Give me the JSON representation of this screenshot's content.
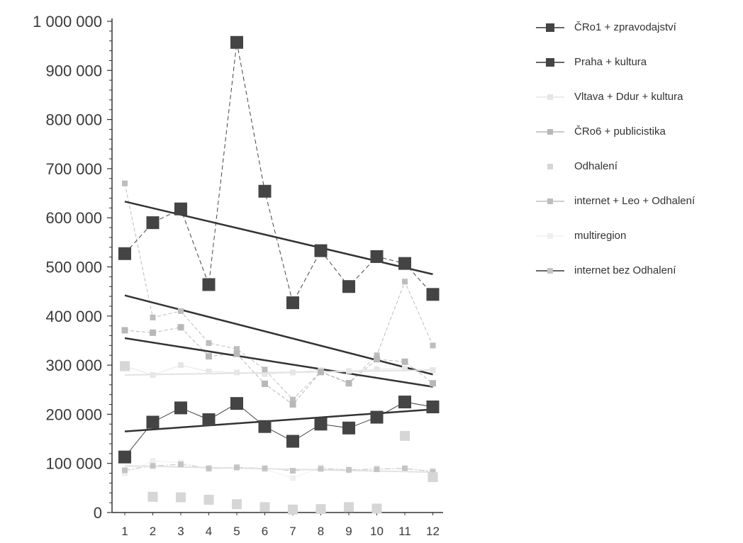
{
  "colors": {
    "background": "#ffffff",
    "axis": "#333333",
    "cro1": "#444444",
    "praha": "#444444",
    "vltava": "#e6e6e6",
    "cro6": "#b8b8b8",
    "odhaleni": "#d6d6d6",
    "internet_leo": "#bdbdbd",
    "multiregion": "#efefef",
    "internet_bez": "#c4c4c4",
    "trend": "#333333"
  },
  "chart_data": {
    "type": "line",
    "title": "",
    "xlabel": "",
    "ylabel": "",
    "categories": [
      "1",
      "2",
      "3",
      "4",
      "5",
      "6",
      "7",
      "8",
      "9",
      "10",
      "11",
      "12"
    ],
    "ylim": [
      0,
      1000000
    ],
    "y_ticks": [
      0,
      100000,
      200000,
      300000,
      400000,
      500000,
      600000,
      700000,
      800000,
      900000,
      1000000
    ],
    "y_tick_labels": [
      "0",
      "100 000",
      "200 000",
      "300 000",
      "400 000",
      "500 000",
      "600 000",
      "700 000",
      "800 000",
      "900 000",
      "1 000 000"
    ],
    "grid": false,
    "legend_position": "right",
    "series": [
      {
        "name": "ČRo1 + zpravodajství",
        "key": "cro1",
        "marker": "square-large",
        "line": "dashed",
        "values": [
          527000,
          590000,
          618000,
          464000,
          957000,
          654000,
          427000,
          533000,
          460000,
          521000,
          507000,
          444000
        ]
      },
      {
        "name": "Praha + kultura",
        "key": "praha",
        "marker": "square-large",
        "line": "solid-thin",
        "values": [
          113000,
          184000,
          213000,
          189000,
          222000,
          175000,
          145000,
          180000,
          172000,
          194000,
          225000,
          215000
        ]
      },
      {
        "name": "Vltava + Ddur + kultura",
        "key": "vltava",
        "marker": "square",
        "line": "solid-thin",
        "values": [
          298000,
          280000,
          300000,
          287000,
          285000,
          282000,
          285000,
          290000,
          288000,
          292000,
          293000,
          290000
        ]
      },
      {
        "name": "ČRo6 + publicistika",
        "key": "cro6",
        "marker": "square-small",
        "line": "dashed",
        "values": [
          371000,
          366000,
          377000,
          318000,
          323000,
          262000,
          220000,
          286000,
          263000,
          312000,
          307000,
          263000
        ]
      },
      {
        "name": "Odhalení",
        "key": "odhaleni",
        "marker": "square",
        "line": "none",
        "values": [
          298000,
          32000,
          31000,
          26000,
          17000,
          11000,
          6000,
          7000,
          11000,
          8000,
          156000,
          72000
        ]
      },
      {
        "name": "internet + Leo + Odhalení",
        "key": "internet_leo",
        "marker": "square-small",
        "line": "dashed",
        "values": [
          670000,
          397000,
          410000,
          345000,
          333000,
          291000,
          230000,
          287000,
          264000,
          320000,
          470000,
          340000
        ]
      },
      {
        "name": "multiregion",
        "key": "multiregion",
        "marker": "square",
        "line": "solid-thin",
        "values": [
          80000,
          105000,
          102000,
          88000,
          91000,
          88000,
          70000,
          92000,
          86000,
          90000,
          88000,
          85000
        ]
      },
      {
        "name": "internet bez Odhalení",
        "key": "internet_bez",
        "marker": "square-small",
        "line": "dash-dot",
        "values": [
          86000,
          95000,
          98000,
          90000,
          92000,
          90000,
          85000,
          89000,
          87000,
          88000,
          90000,
          83000
        ]
      }
    ],
    "trendlines": [
      {
        "of": "ČRo1 + zpravodajství",
        "start": 633000,
        "end": 485000
      },
      {
        "of": "internet + Leo + Odhalení",
        "start": 442000,
        "end": 281000
      },
      {
        "of": "ČRo6 + publicistika",
        "start": 355000,
        "end": 256000
      },
      {
        "of": "Praha + kultura",
        "start": 165000,
        "end": 210000
      },
      {
        "of": "Vltava + Ddur + kultura",
        "start": 280000,
        "end": 290000
      },
      {
        "of": "multiregion",
        "start": 95000,
        "end": 82000
      }
    ]
  }
}
